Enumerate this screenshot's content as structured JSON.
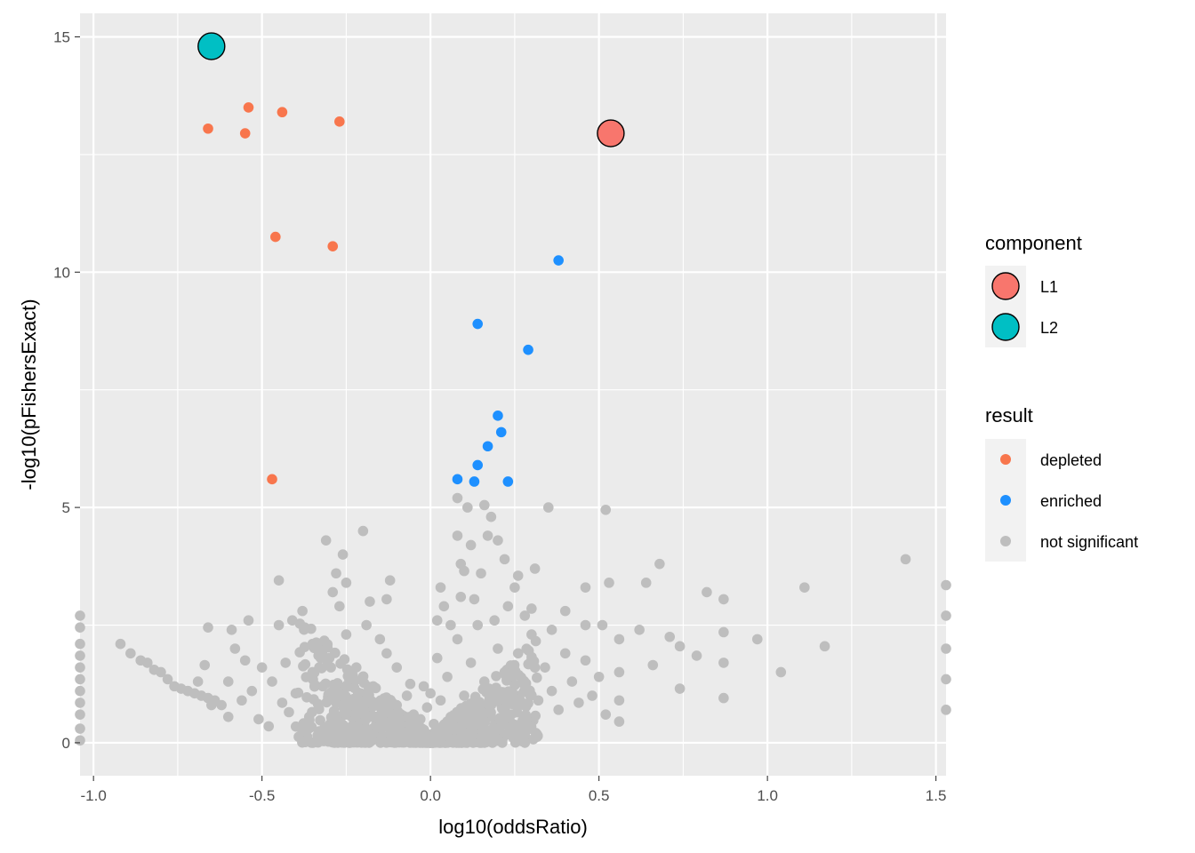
{
  "chart_data": {
    "type": "scatter",
    "title": "",
    "xlabel": "log10(oddsRatio)",
    "ylabel": "-log10(pFishersExact)",
    "xlim": [
      -1.04,
      1.53
    ],
    "ylim": [
      -0.7,
      15.5
    ],
    "x_ticks": [
      {
        "value": -1.0,
        "label": "-1.0"
      },
      {
        "value": -0.5,
        "label": "-0.5"
      },
      {
        "value": 0.0,
        "label": "0.0"
      },
      {
        "value": 0.5,
        "label": "0.5"
      },
      {
        "value": 1.0,
        "label": "1.0"
      },
      {
        "value": 1.5,
        "label": "1.5"
      }
    ],
    "y_ticks": [
      {
        "value": 0,
        "label": "0"
      },
      {
        "value": 5,
        "label": "5"
      },
      {
        "value": 10,
        "label": "10"
      },
      {
        "value": 15,
        "label": "15"
      }
    ],
    "grid": true,
    "legend_position": "right",
    "colors": {
      "depleted": "#F8764D",
      "enriched": "#1E90FF",
      "not significant": "#BEBEBE",
      "L1": "#F8766D",
      "L2": "#00BFC4",
      "panel": "#EBEBEB",
      "grid": "#FFFFFF"
    },
    "legends": [
      {
        "title": "component",
        "entries": [
          {
            "label": "L1",
            "color": "#F8766D"
          },
          {
            "label": "L2",
            "color": "#00BFC4"
          }
        ]
      },
      {
        "title": "result",
        "entries": [
          {
            "label": "depleted",
            "color": "#F8764D"
          },
          {
            "label": "enriched",
            "color": "#1E90FF"
          },
          {
            "label": "not significant",
            "color": "#BEBEBE"
          }
        ]
      }
    ],
    "series": [
      {
        "name": "depleted",
        "points": [
          [
            -0.67,
            14.7
          ],
          [
            -0.54,
            13.5
          ],
          [
            -0.44,
            13.4
          ],
          [
            -0.27,
            13.2
          ],
          [
            -0.66,
            13.05
          ],
          [
            -0.55,
            12.95
          ],
          [
            -0.46,
            10.75
          ],
          [
            -0.29,
            10.55
          ],
          [
            -0.47,
            5.6
          ]
        ]
      },
      {
        "name": "enriched",
        "points": [
          [
            0.38,
            10.25
          ],
          [
            0.14,
            8.9
          ],
          [
            0.29,
            8.35
          ],
          [
            0.2,
            6.95
          ],
          [
            0.21,
            6.6
          ],
          [
            0.17,
            6.3
          ],
          [
            0.14,
            5.9
          ],
          [
            0.08,
            5.6
          ],
          [
            0.13,
            5.55
          ],
          [
            0.23,
            5.55
          ]
        ]
      },
      {
        "name": "not significant",
        "points": [
          [
            1.41,
            3.9
          ],
          [
            1.53,
            3.35
          ],
          [
            1.53,
            2.7
          ],
          [
            1.53,
            2.0
          ],
          [
            1.53,
            1.35
          ],
          [
            1.53,
            0.7
          ],
          [
            1.11,
            3.3
          ],
          [
            1.17,
            2.05
          ],
          [
            1.04,
            1.5
          ],
          [
            0.97,
            2.2
          ],
          [
            0.87,
            3.05
          ],
          [
            0.87,
            2.35
          ],
          [
            0.87,
            1.7
          ],
          [
            0.87,
            0.95
          ],
          [
            0.82,
            3.2
          ],
          [
            0.79,
            1.85
          ],
          [
            0.74,
            1.15
          ],
          [
            0.74,
            2.05
          ],
          [
            0.71,
            2.25
          ],
          [
            0.68,
            3.8
          ],
          [
            0.66,
            1.65
          ],
          [
            0.64,
            3.4
          ],
          [
            0.62,
            2.4
          ],
          [
            0.52,
            4.95
          ],
          [
            0.53,
            3.4
          ],
          [
            0.51,
            2.5
          ],
          [
            0.46,
            3.3
          ],
          [
            0.56,
            2.2
          ],
          [
            0.56,
            1.5
          ],
          [
            0.56,
            0.9
          ],
          [
            0.56,
            0.45
          ],
          [
            0.46,
            2.5
          ],
          [
            0.4,
            2.8
          ],
          [
            0.35,
            5.0
          ],
          [
            0.36,
            2.4
          ],
          [
            0.31,
            3.7
          ],
          [
            0.3,
            2.85
          ],
          [
            0.26,
            3.55
          ],
          [
            0.25,
            3.3
          ],
          [
            0.22,
            3.9
          ],
          [
            0.2,
            4.3
          ],
          [
            0.18,
            4.8
          ],
          [
            0.17,
            4.4
          ],
          [
            0.16,
            5.05
          ],
          [
            0.15,
            3.6
          ],
          [
            0.12,
            4.2
          ],
          [
            0.09,
            3.8
          ],
          [
            0.08,
            4.4
          ],
          [
            0.08,
            5.2
          ],
          [
            0.11,
            5.0
          ],
          [
            0.1,
            3.65
          ],
          [
            0.09,
            3.1
          ],
          [
            0.04,
            2.9
          ],
          [
            0.06,
            2.5
          ],
          [
            0.02,
            1.8
          ],
          [
            -0.02,
            1.2
          ],
          [
            0.03,
            0.9
          ],
          [
            0.01,
            0.4
          ],
          [
            -0.01,
            0.15
          ],
          [
            0.04,
            0.25
          ],
          [
            -0.05,
            0.6
          ],
          [
            -0.1,
            0.8
          ],
          [
            -0.13,
            1.9
          ],
          [
            -0.18,
            3.0
          ],
          [
            -0.12,
            3.45
          ],
          [
            -0.13,
            3.05
          ],
          [
            -0.19,
            2.5
          ],
          [
            -0.25,
            3.4
          ],
          [
            -0.26,
            4.0
          ],
          [
            -0.28,
            3.6
          ],
          [
            -0.29,
            3.2
          ],
          [
            -0.2,
            4.5
          ],
          [
            -0.31,
            4.3
          ],
          [
            -0.27,
            2.9
          ],
          [
            -0.38,
            2.8
          ],
          [
            -0.41,
            2.6
          ],
          [
            -0.45,
            3.45
          ],
          [
            -0.45,
            2.5
          ],
          [
            -0.54,
            2.6
          ],
          [
            -0.59,
            2.4
          ],
          [
            -0.58,
            2.0
          ],
          [
            -0.66,
            2.45
          ],
          [
            -0.67,
            1.65
          ],
          [
            -0.69,
            1.3
          ],
          [
            -0.72,
            1.1
          ],
          [
            -0.65,
            0.8
          ],
          [
            -0.6,
            0.55
          ],
          [
            -0.6,
            1.3
          ],
          [
            -0.53,
            1.1
          ],
          [
            -0.51,
            0.5
          ],
          [
            -0.48,
            0.35
          ],
          [
            -0.44,
            0.85
          ],
          [
            -0.43,
            1.7
          ],
          [
            -0.35,
            1.5
          ],
          [
            -0.38,
            0.25
          ],
          [
            -0.33,
            0.2
          ],
          [
            -0.28,
            0.1
          ],
          [
            -0.25,
            0.6
          ],
          [
            -0.2,
            0.25
          ],
          [
            -0.17,
            1.2
          ],
          [
            -0.07,
            1.0
          ],
          [
            -0.09,
            0.4
          ],
          [
            -0.04,
            0.15
          ],
          [
            -0.92,
            2.1
          ],
          [
            -0.89,
            1.9
          ],
          [
            -0.86,
            1.75
          ],
          [
            -0.84,
            1.7
          ],
          [
            -0.82,
            1.55
          ],
          [
            -0.8,
            1.5
          ],
          [
            -0.78,
            1.35
          ],
          [
            -0.76,
            1.2
          ],
          [
            -0.74,
            1.15
          ],
          [
            -0.72,
            1.1
          ],
          [
            -0.7,
            1.05
          ],
          [
            -0.68,
            1.0
          ],
          [
            -0.66,
            0.95
          ],
          [
            -0.64,
            0.9
          ],
          [
            -0.62,
            0.8
          ],
          [
            -1.04,
            2.7
          ],
          [
            -1.04,
            2.45
          ],
          [
            -1.04,
            2.1
          ],
          [
            -1.04,
            1.85
          ],
          [
            -1.04,
            1.6
          ],
          [
            -1.04,
            1.35
          ],
          [
            -1.04,
            1.1
          ],
          [
            -1.04,
            0.85
          ],
          [
            -1.04,
            0.6
          ],
          [
            -1.04,
            0.3
          ],
          [
            -1.04,
            0.05
          ],
          [
            -0.35,
            2.1
          ],
          [
            -0.3,
            1.8
          ],
          [
            -0.25,
            2.3
          ],
          [
            -0.22,
            1.6
          ],
          [
            -0.15,
            2.2
          ],
          [
            -0.1,
            1.6
          ],
          [
            -0.06,
            1.25
          ],
          [
            -0.32,
            1.2
          ],
          [
            -0.28,
            0.85
          ],
          [
            -0.22,
            0.95
          ],
          [
            -0.18,
            0.55
          ],
          [
            -0.14,
            0.7
          ],
          [
            -0.12,
            0.3
          ],
          [
            -0.36,
            0.55
          ],
          [
            -0.42,
            0.65
          ],
          [
            -0.4,
            1.05
          ],
          [
            -0.47,
            1.3
          ],
          [
            -0.5,
            1.6
          ],
          [
            -0.55,
            1.75
          ],
          [
            -0.56,
            0.9
          ],
          [
            0.05,
            1.4
          ],
          [
            0.08,
            2.2
          ],
          [
            0.1,
            1.0
          ],
          [
            0.12,
            1.7
          ],
          [
            0.14,
            2.5
          ],
          [
            0.16,
            1.3
          ],
          [
            0.18,
            0.8
          ],
          [
            0.2,
            2.0
          ],
          [
            0.22,
            1.5
          ],
          [
            0.24,
            0.6
          ],
          [
            0.26,
            1.9
          ],
          [
            0.28,
            1.2
          ],
          [
            0.3,
            2.3
          ],
          [
            0.32,
            0.9
          ],
          [
            0.34,
            1.6
          ],
          [
            0.36,
            1.1
          ],
          [
            0.38,
            0.7
          ],
          [
            0.4,
            1.9
          ],
          [
            0.42,
            1.3
          ],
          [
            0.44,
            0.85
          ],
          [
            0.46,
            1.75
          ],
          [
            0.48,
            1.0
          ],
          [
            0.5,
            1.4
          ],
          [
            0.52,
            0.6
          ],
          [
            0.06,
            0.55
          ],
          [
            0.09,
            0.3
          ],
          [
            0.13,
            0.45
          ],
          [
            0.17,
            0.2
          ],
          [
            0.21,
            0.35
          ],
          [
            0.25,
            0.15
          ],
          [
            0.02,
            2.6
          ],
          [
            0.03,
            3.3
          ],
          [
            0.13,
            3.05
          ],
          [
            0.19,
            2.6
          ],
          [
            0.23,
            2.9
          ],
          [
            0.28,
            2.7
          ],
          [
            -0.03,
            0.5
          ],
          [
            -0.06,
            0.25
          ],
          [
            -0.1,
            0.1
          ],
          [
            -0.15,
            0.35
          ],
          [
            -0.01,
            0.75
          ],
          [
            0.0,
            1.05
          ],
          [
            0.01,
            0.05
          ],
          [
            0.03,
            0.1
          ],
          [
            -0.02,
            0.02
          ],
          [
            0.07,
            0.08
          ]
        ]
      },
      {
        "name": "L1",
        "points": [
          [
            0.535,
            12.95
          ]
        ]
      },
      {
        "name": "L2",
        "points": [
          [
            -0.65,
            14.8
          ]
        ]
      }
    ]
  }
}
